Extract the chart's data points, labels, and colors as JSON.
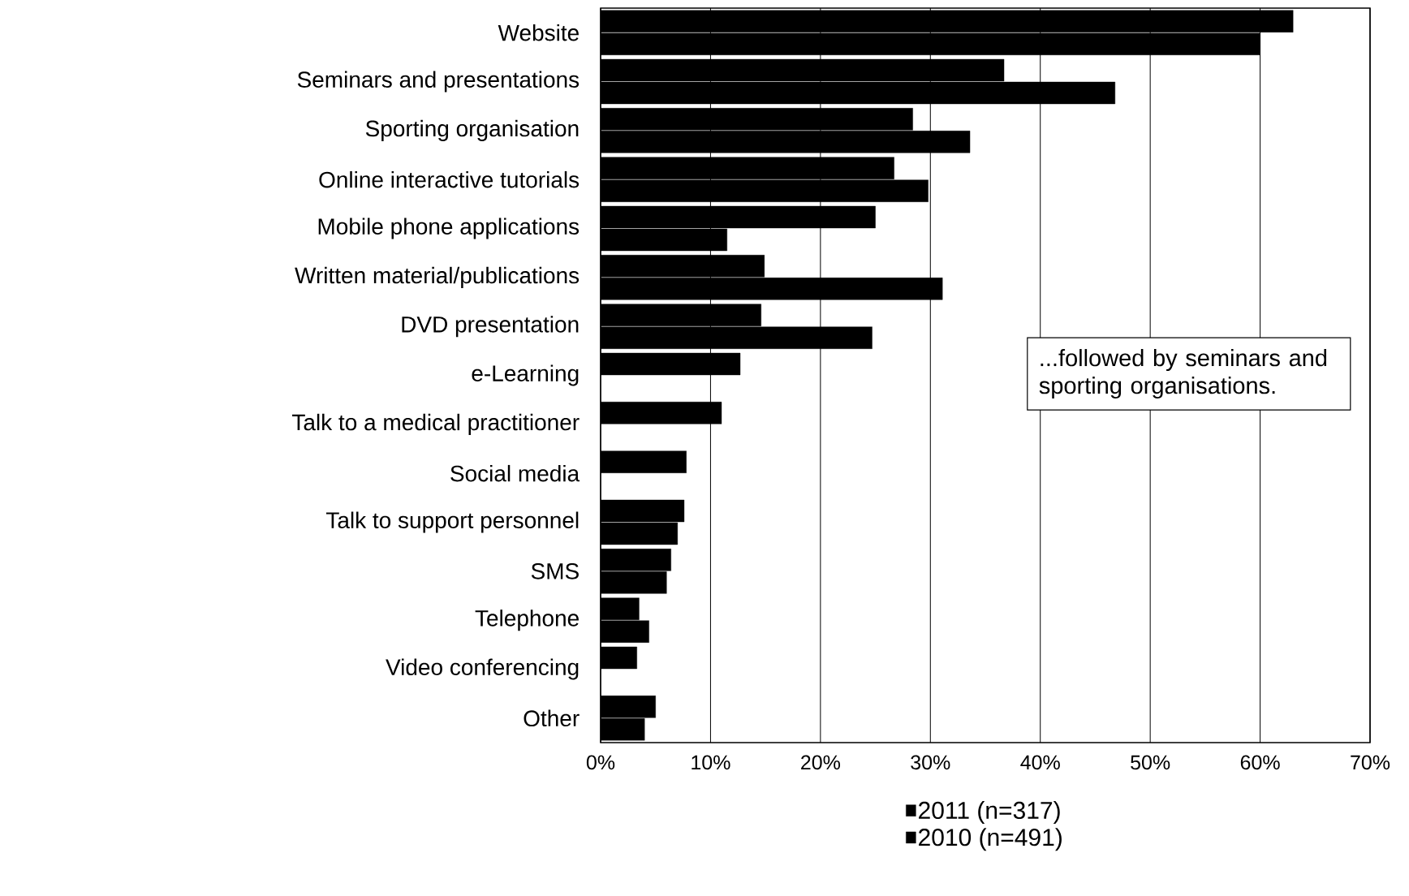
{
  "chart_data": {
    "type": "bar",
    "orientation": "horizontal",
    "categories": [
      "Website",
      "Seminars and presentations",
      "Sporting organisation",
      "Online interactive tutorials",
      "Mobile phone applications",
      "Written material/publications",
      "DVD presentation",
      "e-Learning",
      "Talk to a medical practitioner",
      "Social media",
      "Talk to support personnel",
      "SMS",
      "Telephone",
      "Video conferencing",
      "Other"
    ],
    "series": [
      {
        "name": "2011 (n=317)",
        "color": "#000000",
        "values": [
          63,
          36.7,
          28.4,
          26.7,
          25.0,
          14.9,
          14.6,
          12.7,
          11.0,
          7.8,
          7.6,
          6.4,
          3.5,
          3.3,
          5.0
        ]
      },
      {
        "name": "2010 (n=491)",
        "color": "#000000",
        "values": [
          60,
          46.8,
          33.6,
          29.8,
          11.5,
          31.1,
          24.7,
          null,
          null,
          null,
          7.0,
          6.0,
          4.4,
          null,
          4.0
        ]
      }
    ],
    "xlim": [
      0,
      70
    ],
    "xticks": [
      {
        "value": 0,
        "label": "0%"
      },
      {
        "value": 10,
        "label": "10%"
      },
      {
        "value": 20,
        "label": "20%"
      },
      {
        "value": 30,
        "label": "30%"
      },
      {
        "value": 40,
        "label": "40%"
      },
      {
        "value": 50,
        "label": "50%"
      },
      {
        "value": 60,
        "label": "60%"
      },
      {
        "value": 70,
        "label": "70%"
      }
    ],
    "grid": "x",
    "legend": "bottom",
    "annotations": [
      "...followed by seminars and sporting organisations."
    ]
  }
}
